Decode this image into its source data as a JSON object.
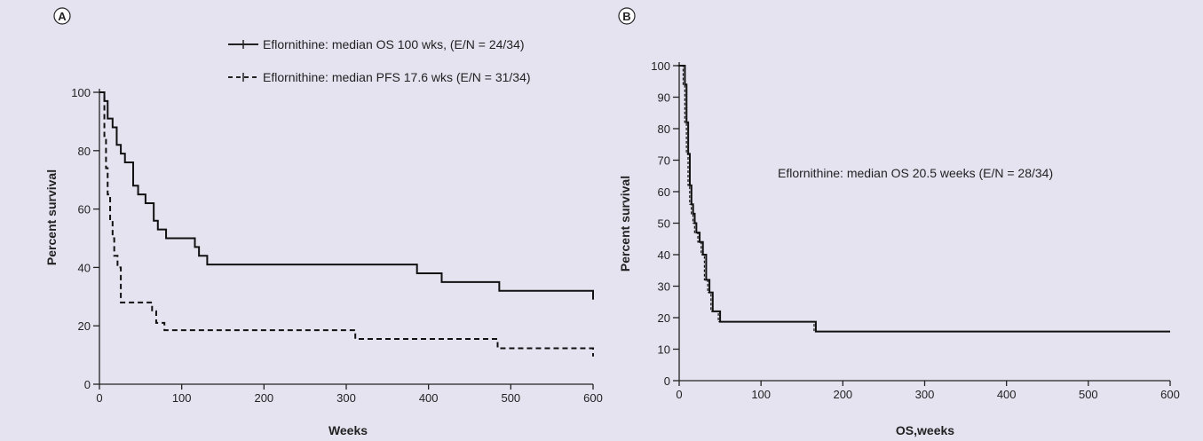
{
  "chart_data": [
    {
      "panel": "A",
      "type": "line",
      "step": true,
      "xlabel": "Weeks",
      "ylabel": "Percent survival",
      "xlim": [
        0,
        600
      ],
      "ylim": [
        0,
        100
      ],
      "xticks": [
        0,
        100,
        200,
        300,
        400,
        500,
        600
      ],
      "yticks": [
        0,
        20,
        40,
        60,
        80,
        100
      ],
      "grid": false,
      "legend": "top-right",
      "series": [
        {
          "name": "Eflornithine: median OS 100 wks, (E/N = 24/34)",
          "style": "solid",
          "x": [
            0,
            6,
            10,
            16,
            21,
            26,
            31,
            41,
            47,
            56,
            66,
            71,
            81,
            96,
            116,
            121,
            131,
            386,
            416,
            486,
            600
          ],
          "y": [
            100,
            97,
            91,
            88,
            82,
            79,
            76,
            68,
            65,
            62,
            56,
            53,
            50,
            50,
            47,
            44,
            41,
            38,
            35,
            32,
            29
          ]
        },
        {
          "name": "Eflornithine: median PFS 17.6 wks (E/N = 31/34)",
          "style": "dashed",
          "x": [
            0,
            6,
            8,
            10,
            13,
            16,
            18,
            22,
            26,
            64,
            69,
            79,
            311,
            484,
            600
          ],
          "y": [
            100,
            85,
            74,
            65,
            56,
            50,
            44,
            40,
            28,
            25,
            21,
            18.5,
            15.5,
            12.3,
            9.5
          ]
        }
      ]
    },
    {
      "panel": "B",
      "type": "line",
      "step": true,
      "xlabel": "OS,weeks",
      "ylabel": "Percent survival",
      "xlim": [
        0,
        600
      ],
      "ylim": [
        0,
        100
      ],
      "xticks": [
        0,
        100,
        200,
        300,
        400,
        500,
        600
      ],
      "yticks": [
        0,
        10,
        20,
        30,
        40,
        50,
        60,
        70,
        80,
        90,
        100
      ],
      "grid": false,
      "annotation": "Eflornithine: median OS 20.5 weeks (E/N = 28/34)",
      "series": [
        {
          "style": "solid-with-dashed-overlay",
          "x": [
            0,
            7,
            9,
            11,
            13,
            15,
            17,
            19,
            21,
            25,
            29,
            33,
            37,
            41,
            50,
            167,
            600
          ],
          "y": [
            100,
            94,
            82,
            72,
            62,
            56,
            53,
            50,
            47,
            44,
            40,
            32,
            28,
            22,
            18.7,
            15.6,
            15.6
          ]
        }
      ]
    }
  ]
}
